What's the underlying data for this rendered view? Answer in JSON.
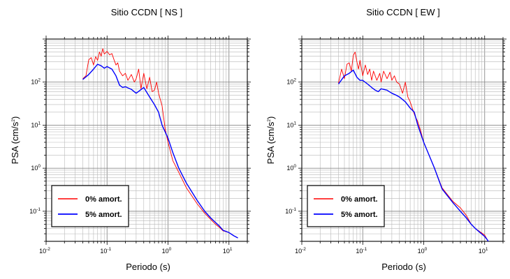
{
  "chart_data": [
    {
      "type": "line",
      "title": "Sitio CCDN [ NS ]",
      "xlabel": "Periodo (s)",
      "ylabel": "PSA (cm/s2)",
      "x_scale": "log",
      "y_scale": "log",
      "xlim": [
        0.01,
        20
      ],
      "ylim": [
        0.02,
        1000
      ],
      "grid": true,
      "legend_position": "bottom-left",
      "x_ticks": [
        {
          "mantissa": "10",
          "exponent": "-2"
        },
        {
          "mantissa": "10",
          "exponent": "-1"
        },
        {
          "mantissa": "10",
          "exponent": "0"
        },
        {
          "mantissa": "10",
          "exponent": "1"
        }
      ],
      "y_ticks": [
        {
          "mantissa": "10",
          "exponent": "-1"
        },
        {
          "mantissa": "10",
          "exponent": "0"
        },
        {
          "mantissa": "10",
          "exponent": "1"
        },
        {
          "mantissa": "10",
          "exponent": "2"
        }
      ],
      "series": [
        {
          "name": "0% amort.",
          "color": "#ff0000",
          "x": [
            0.04,
            0.045,
            0.05,
            0.055,
            0.06,
            0.065,
            0.07,
            0.075,
            0.08,
            0.085,
            0.09,
            0.095,
            0.1,
            0.11,
            0.12,
            0.13,
            0.14,
            0.15,
            0.16,
            0.18,
            0.2,
            0.22,
            0.25,
            0.28,
            0.3,
            0.33,
            0.36,
            0.4,
            0.45,
            0.5,
            0.55,
            0.6,
            0.65,
            0.7,
            0.8,
            0.9,
            1.0,
            1.2,
            1.5,
            2.0,
            2.5,
            3.0,
            4.0,
            5.0,
            6.0,
            7.0,
            8.0,
            10.0,
            12.0,
            14.0
          ],
          "y": [
            120,
            140,
            330,
            370,
            250,
            390,
            320,
            500,
            400,
            600,
            450,
            480,
            520,
            430,
            460,
            330,
            250,
            280,
            180,
            140,
            160,
            110,
            150,
            100,
            120,
            200,
            70,
            160,
            70,
            130,
            60,
            65,
            100,
            55,
            28,
            8,
            4,
            1.5,
            0.8,
            0.35,
            0.22,
            0.15,
            0.09,
            0.065,
            0.05,
            0.042,
            0.035,
            0.032,
            0.027,
            0.024
          ]
        },
        {
          "name": "5% amort.",
          "color": "#0000ff",
          "x": [
            0.04,
            0.05,
            0.06,
            0.07,
            0.08,
            0.09,
            0.1,
            0.12,
            0.14,
            0.16,
            0.18,
            0.2,
            0.25,
            0.3,
            0.35,
            0.4,
            0.5,
            0.6,
            0.7,
            0.8,
            1.0,
            1.2,
            1.5,
            2.0,
            3.0,
            4.0,
            5.0,
            6.0,
            7.0,
            8.0,
            10.0,
            12.0,
            14.0
          ],
          "y": [
            115,
            150,
            200,
            260,
            240,
            210,
            230,
            200,
            140,
            85,
            75,
            78,
            68,
            55,
            65,
            75,
            45,
            30,
            20,
            10,
            5,
            2.3,
            1,
            0.45,
            0.18,
            0.1,
            0.07,
            0.055,
            0.045,
            0.036,
            0.032,
            0.027,
            0.024
          ]
        }
      ]
    },
    {
      "type": "line",
      "title": "Sitio CCDN [ EW ]",
      "xlabel": "Periodo (s)",
      "ylabel": "PSA (cm/s2)",
      "x_scale": "log",
      "y_scale": "log",
      "xlim": [
        0.01,
        20
      ],
      "ylim": [
        0.02,
        1000
      ],
      "grid": true,
      "legend_position": "bottom-left",
      "x_ticks": [
        {
          "mantissa": "10",
          "exponent": "-2"
        },
        {
          "mantissa": "10",
          "exponent": "-1"
        },
        {
          "mantissa": "10",
          "exponent": "0"
        },
        {
          "mantissa": "10",
          "exponent": "1"
        }
      ],
      "y_ticks": [
        {
          "mantissa": "10",
          "exponent": "-1"
        },
        {
          "mantissa": "10",
          "exponent": "0"
        },
        {
          "mantissa": "10",
          "exponent": "1"
        },
        {
          "mantissa": "10",
          "exponent": "2"
        }
      ],
      "series": [
        {
          "name": "0% amort.",
          "color": "#ff0000",
          "x": [
            0.04,
            0.045,
            0.05,
            0.055,
            0.06,
            0.065,
            0.07,
            0.075,
            0.08,
            0.085,
            0.09,
            0.1,
            0.11,
            0.12,
            0.13,
            0.14,
            0.15,
            0.17,
            0.19,
            0.2,
            0.22,
            0.25,
            0.28,
            0.3,
            0.33,
            0.36,
            0.4,
            0.45,
            0.5,
            0.55,
            0.6,
            0.7,
            0.8,
            0.9,
            1.0,
            1.5,
            2.0,
            3.0,
            4.0,
            5.0,
            6.0,
            7.0,
            8.0,
            10.0,
            11.0,
            12.0,
            13.0,
            14.0
          ],
          "y": [
            95,
            200,
            120,
            260,
            280,
            180,
            420,
            500,
            300,
            200,
            320,
            140,
            250,
            150,
            200,
            110,
            180,
            110,
            160,
            100,
            180,
            120,
            170,
            110,
            140,
            100,
            90,
            55,
            100,
            45,
            35,
            18,
            12,
            7,
            4,
            1,
            0.35,
            0.17,
            0.12,
            0.08,
            0.05,
            0.04,
            0.035,
            0.028,
            0.022,
            0.018,
            0.016,
            0.016
          ]
        },
        {
          "name": "5% amort.",
          "color": "#0000ff",
          "x": [
            0.04,
            0.05,
            0.06,
            0.07,
            0.08,
            0.09,
            0.1,
            0.12,
            0.14,
            0.16,
            0.18,
            0.2,
            0.25,
            0.3,
            0.35,
            0.4,
            0.5,
            0.6,
            0.7,
            0.8,
            1.0,
            1.5,
            2.0,
            3.0,
            4.0,
            5.0,
            6.0,
            7.0,
            8.0,
            10.0,
            11.0,
            12.0,
            13.0,
            14.0
          ],
          "y": [
            90,
            140,
            160,
            190,
            130,
            110,
            110,
            90,
            75,
            65,
            60,
            70,
            65,
            55,
            50,
            45,
            35,
            25,
            20,
            10,
            4,
            1,
            0.33,
            0.16,
            0.1,
            0.07,
            0.05,
            0.04,
            0.034,
            0.026,
            0.022,
            0.018,
            0.016,
            0.016
          ]
        }
      ]
    }
  ]
}
